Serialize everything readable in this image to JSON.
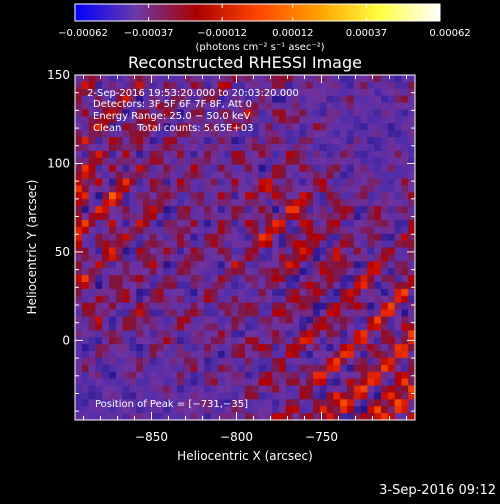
{
  "chart_data": {
    "type": "heatmap",
    "title": "Reconstructed RHESSI Image",
    "xlabel": "Heliocentric X (arcsec)",
    "ylabel": "Heliocentric Y (arcsec)",
    "xlim": [
      -895,
      -695
    ],
    "ylim": [
      -45,
      150
    ],
    "x_ticks": [
      -850,
      -800,
      -750
    ],
    "x_tick_labels": [
      "−850",
      "−800",
      "−750"
    ],
    "y_ticks": [
      0,
      50,
      100,
      150
    ],
    "y_tick_labels": [
      "0",
      "50",
      "100",
      "150"
    ],
    "colormap": "RHESSI hot (blue → purple → red → orange → yellow → white)",
    "colorbar": {
      "range": [
        -0.00062,
        0.00062
      ],
      "ticks": [
        -0.00062,
        -0.00037,
        -0.00012,
        0.00012,
        0.00037,
        0.00062
      ],
      "tick_labels": [
        "−0.00062",
        "−0.00037",
        "−0.00012",
        "0.00012",
        "0.00037",
        "0.00062"
      ],
      "units_label": "(photons cm⁻² s⁻¹ asec⁻²)",
      "stops": [
        "#0000ff",
        "#6a3aa8",
        "#aa0000",
        "#ff4400",
        "#ffa000",
        "#ffff40",
        "#ffffff"
      ]
    },
    "annotations": [
      "2-Sep-2016 19:53:20.000 to 20:03:20.000",
      "Detectors: 3F 5F 6F 7F 8F, Att 0",
      "Energy Range: 25.0 − 50.0 keV",
      "Clean     Total counts: 5.65E+03"
    ],
    "peak_label": "Position of Peak = [−731,−35]",
    "peak_position": [
      -731,
      -35
    ]
  },
  "footer_date": "3-Sep-2016 09:12"
}
